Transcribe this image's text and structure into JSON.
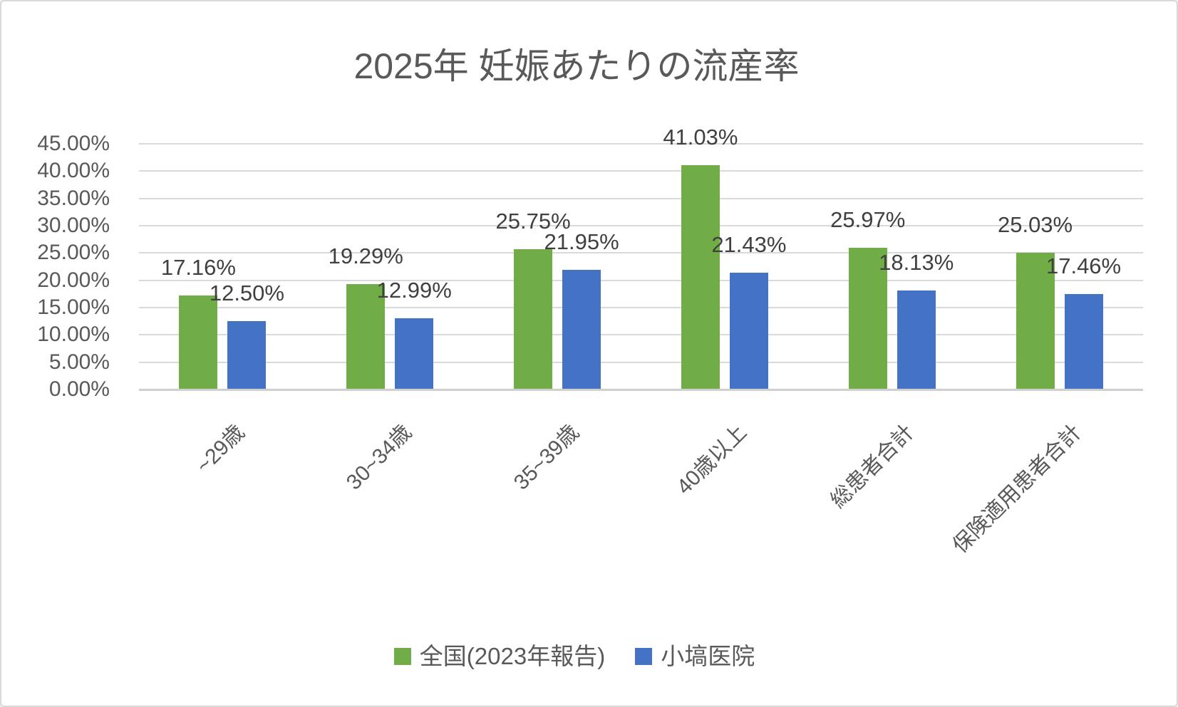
{
  "chart_data": {
    "type": "bar",
    "title": "2025年 妊娠あたりの流産率",
    "categories": [
      "~29歳",
      "30~34歳",
      "35~39歳",
      "40歳以上",
      "総患者合計",
      "保険適用患者合計"
    ],
    "series": [
      {
        "name": "全国(2023年報告)",
        "color": "#70AD47",
        "values": [
          17.16,
          19.29,
          25.75,
          41.03,
          25.97,
          25.03
        ],
        "data_labels": [
          "17.16%",
          "19.29%",
          "25.75%",
          "41.03%",
          "25.97%",
          "25.03%"
        ]
      },
      {
        "name": "小塙医院",
        "color": "#4472C4",
        "values": [
          12.5,
          12.99,
          21.95,
          21.43,
          18.13,
          17.46
        ],
        "data_labels": [
          "12.50%",
          "12.99%",
          "21.95%",
          "21.43%",
          "18.13%",
          "17.46%"
        ]
      }
    ],
    "y_axis": {
      "min": 0,
      "max": 45,
      "step": 5,
      "tick_labels": [
        "45.00%",
        "40.00%",
        "35.00%",
        "30.00%",
        "25.00%",
        "20.00%",
        "15.00%",
        "10.00%",
        "5.00%",
        "0.00%"
      ]
    },
    "grid": true,
    "legend_position": "bottom"
  },
  "colors": {
    "series_green": "#70AD47",
    "series_blue": "#4472C4",
    "grid_line": "#D9D9D9",
    "axis_line": "#CFCFCF",
    "title_text": "#595959",
    "axis_text": "#595959",
    "data_label_text": "#404040",
    "canvas_border": "#D9D9D9",
    "background": "#FFFFFF"
  }
}
